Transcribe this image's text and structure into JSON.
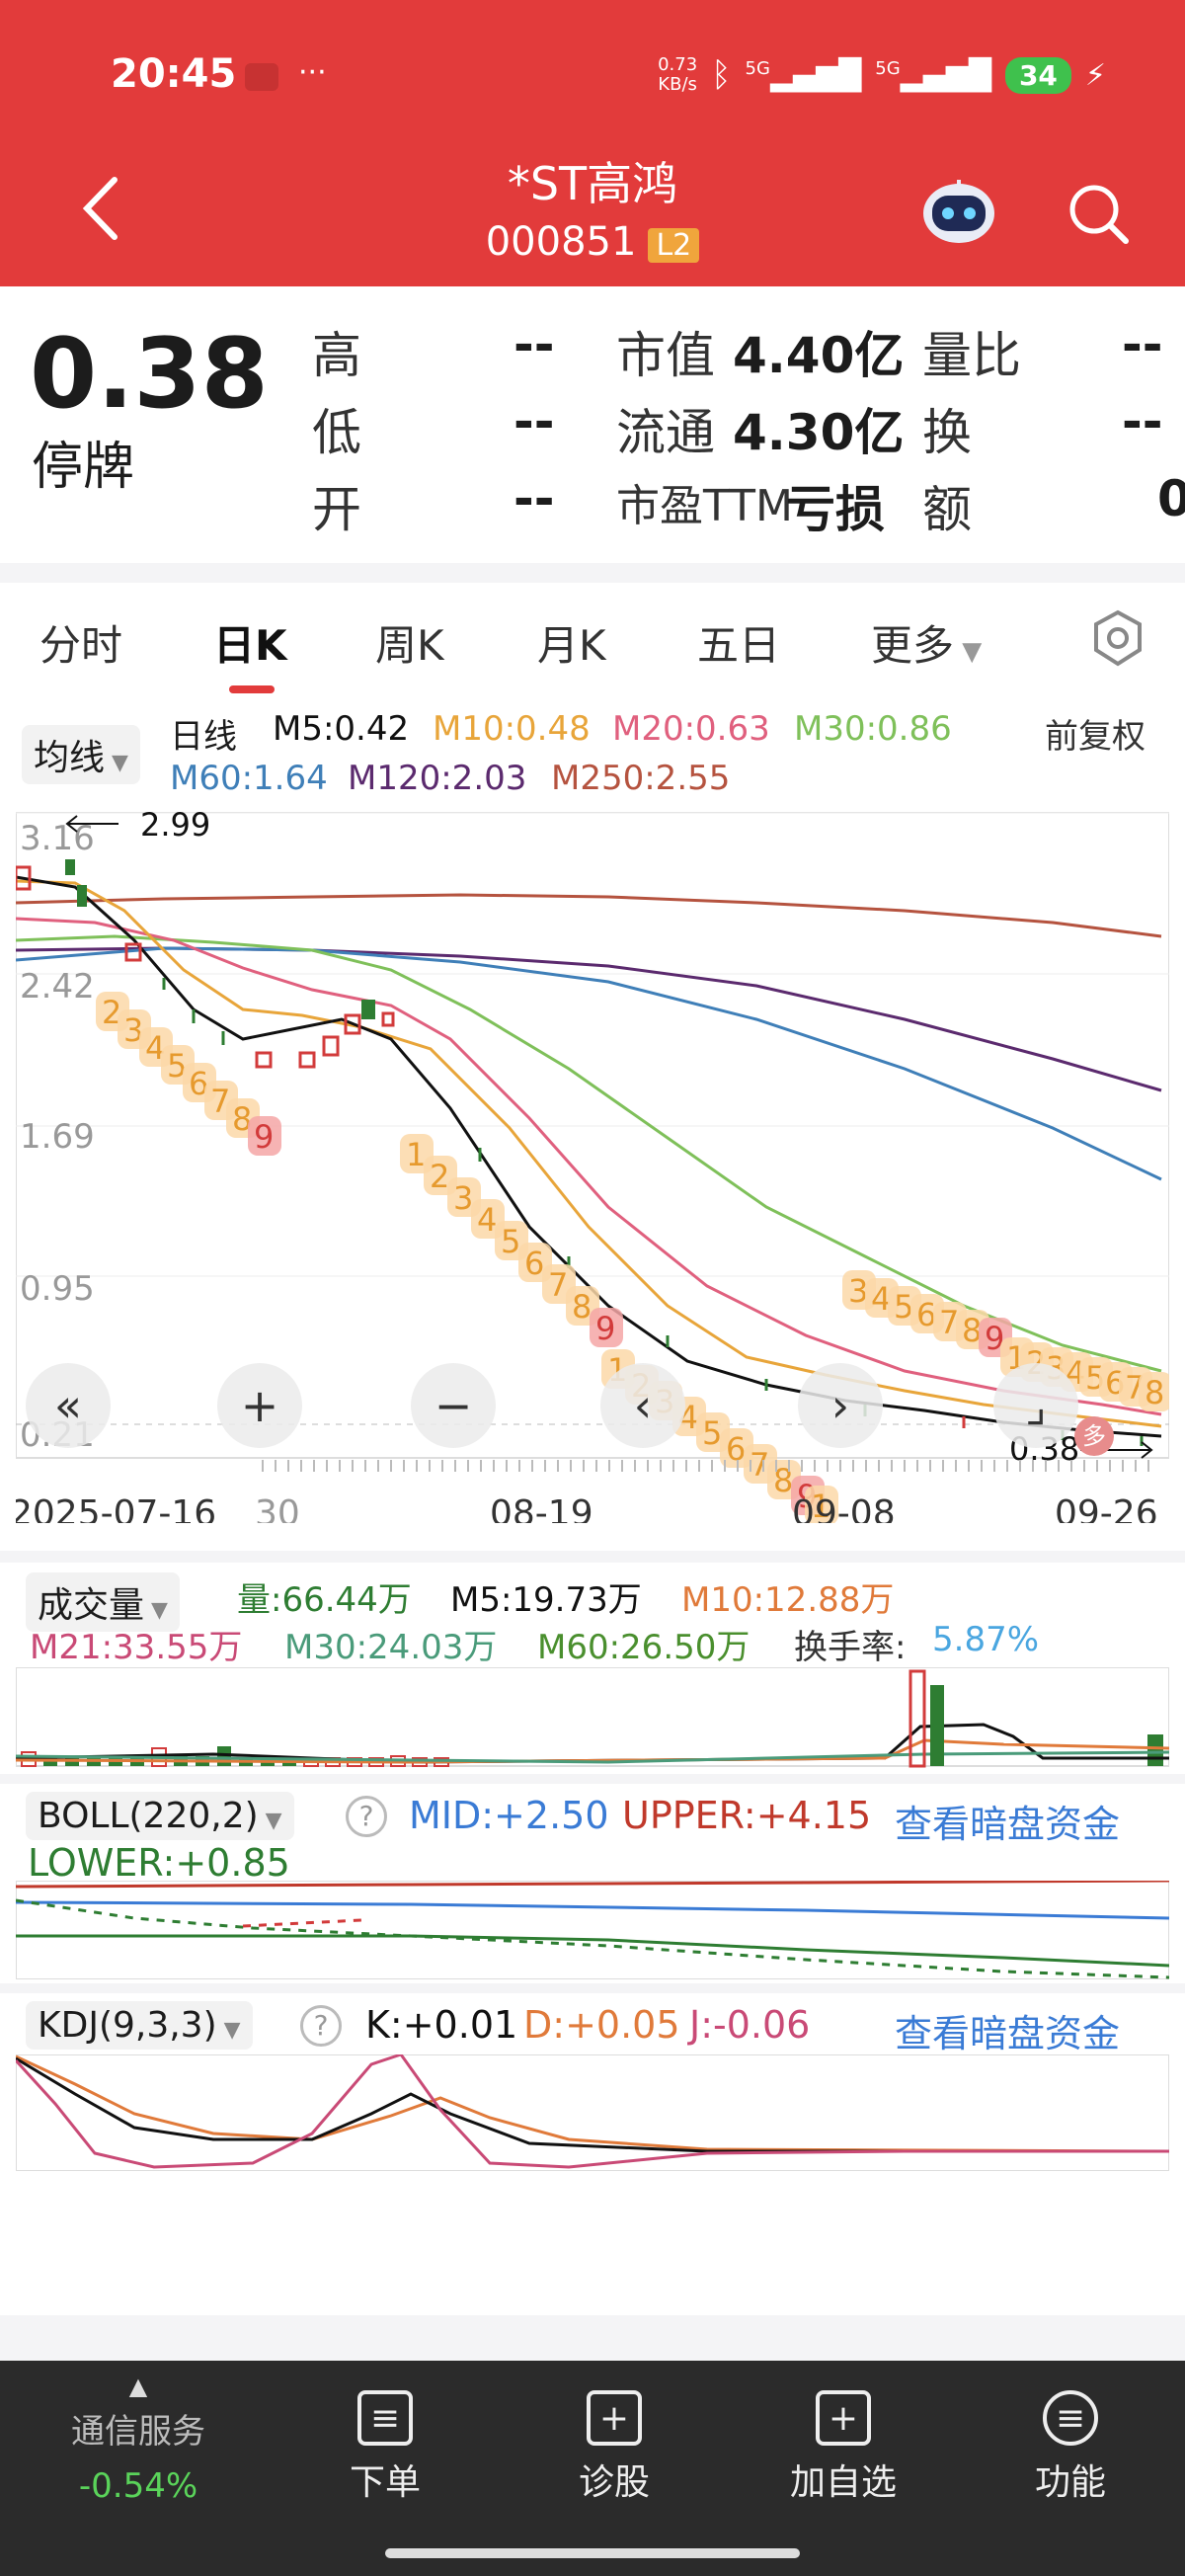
{
  "status": {
    "time": "20:45",
    "net_speed_top": "0.73",
    "net_speed_bot": "KB/s",
    "sig1": "5G",
    "sig2": "5G",
    "battery": "34"
  },
  "header": {
    "title": "*ST高鸿",
    "code": "000851",
    "level": "L2"
  },
  "quote": {
    "price": "0.38",
    "status": "停牌",
    "rows": [
      {
        "l1": "高",
        "v1": "--",
        "l2": "市值",
        "v2": "4.40亿",
        "l3": "量比",
        "v3": "--"
      },
      {
        "l1": "低",
        "v1": "--",
        "l2": "流通",
        "v2": "4.30亿",
        "l3": "换",
        "v3": "--"
      },
      {
        "l1": "开",
        "v1": "--",
        "l2": "市盈TTM",
        "v2": "亏损",
        "l3": "额",
        "v3": "0"
      }
    ]
  },
  "tabs": [
    "分时",
    "日K",
    "周K",
    "月K",
    "五日",
    "更多"
  ],
  "kline": {
    "indicator": "均线",
    "period": "日线",
    "adjust": "前复权",
    "ma": [
      {
        "label": "M5:0.42",
        "color": "#111111"
      },
      {
        "label": "M10:0.48",
        "color": "#e8a53a"
      },
      {
        "label": "M20:0.63",
        "color": "#e0607e"
      },
      {
        "label": "M30:0.86",
        "color": "#7fc05a"
      },
      {
        "label": "M60:1.64",
        "color": "#3f7fb8"
      },
      {
        "label": "M120:2.03",
        "color": "#5b2a6e"
      },
      {
        "label": "M250:2.55",
        "color": "#b5533f"
      }
    ],
    "y_ticks": [
      "3.16",
      "2.42",
      "1.69",
      "0.95",
      "0.21"
    ],
    "max_label": "2.99",
    "min_label": "0.38",
    "x_ticks": [
      "2025-07-16",
      "30",
      "08-19",
      "09-08",
      "09-26"
    ],
    "seq1": [
      "2",
      "3",
      "4",
      "5",
      "6",
      "7",
      "8",
      "9"
    ],
    "seq2": [
      "1",
      "2",
      "3",
      "4",
      "5",
      "6",
      "7",
      "8",
      "9"
    ],
    "seq3": [
      "1",
      "2",
      "3",
      "4",
      "5",
      "6",
      "7",
      "8",
      "9"
    ],
    "seq4": [
      "3",
      "4",
      "5",
      "6",
      "7",
      "8",
      "9"
    ],
    "seq5": [
      "1",
      "2",
      "3",
      "4",
      "5",
      "6",
      "7",
      "8"
    ],
    "seq_tail": "1",
    "badge": "多"
  },
  "volume": {
    "title": "成交量",
    "vol": "量:66.44万",
    "m5": "M5:19.73万",
    "m10": "M10:12.88万",
    "m21": "M21:33.55万",
    "m30": "M30:24.03万",
    "m60": "M60:26.50万",
    "turnover_label": "换手率:",
    "turnover": "5.87%"
  },
  "boll": {
    "title": "BOLL(220,2)",
    "mid": "MID:+2.50",
    "upper": "UPPER:+4.15",
    "lower": "LOWER:+0.85",
    "link": "查看暗盘资金"
  },
  "kdj": {
    "title": "KDJ(9,3,3)",
    "k": "K:+0.01",
    "d": "D:+0.05",
    "j": "J:-0.06",
    "link": "查看暗盘资金"
  },
  "bottom": {
    "sector": "通信服务",
    "sector_change": "-0.54%",
    "actions": [
      {
        "label": "下单",
        "icon": "order-icon"
      },
      {
        "label": "诊股",
        "icon": "diagnose-icon"
      },
      {
        "label": "加自选",
        "icon": "add-watchlist-icon"
      },
      {
        "label": "功能",
        "icon": "menu-icon"
      }
    ]
  },
  "colors": {
    "brand": "#e23b3b",
    "up": "#d23b3b",
    "down": "#2e7d32",
    "link": "#3a7bd5"
  }
}
